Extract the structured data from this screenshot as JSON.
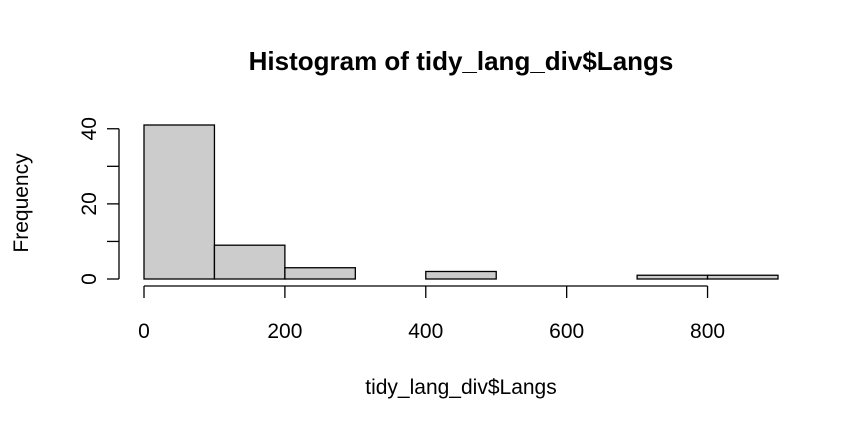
{
  "chart_data": {
    "type": "bar",
    "title": "Histogram of tidy_lang_div$Langs",
    "xlabel": "tidy_lang_div$Langs",
    "ylabel": "Frequency",
    "bins": [
      {
        "start": 0,
        "end": 100,
        "count": 41
      },
      {
        "start": 100,
        "end": 200,
        "count": 9
      },
      {
        "start": 200,
        "end": 300,
        "count": 3
      },
      {
        "start": 300,
        "end": 400,
        "count": 0
      },
      {
        "start": 400,
        "end": 500,
        "count": 2
      },
      {
        "start": 500,
        "end": 600,
        "count": 0
      },
      {
        "start": 600,
        "end": 700,
        "count": 0
      },
      {
        "start": 700,
        "end": 800,
        "count": 1
      },
      {
        "start": 800,
        "end": 900,
        "count": 1
      }
    ],
    "x_ticks": [
      0,
      200,
      400,
      600,
      800
    ],
    "y_ticks": [
      0,
      20,
      40
    ],
    "y_minor_ticks": [
      10,
      30
    ],
    "xlim": [
      0,
      900
    ],
    "ylim": [
      0,
      41
    ],
    "grid": false,
    "legend": "none",
    "bar_fill": "#cccccc",
    "bar_stroke": "#000000"
  }
}
